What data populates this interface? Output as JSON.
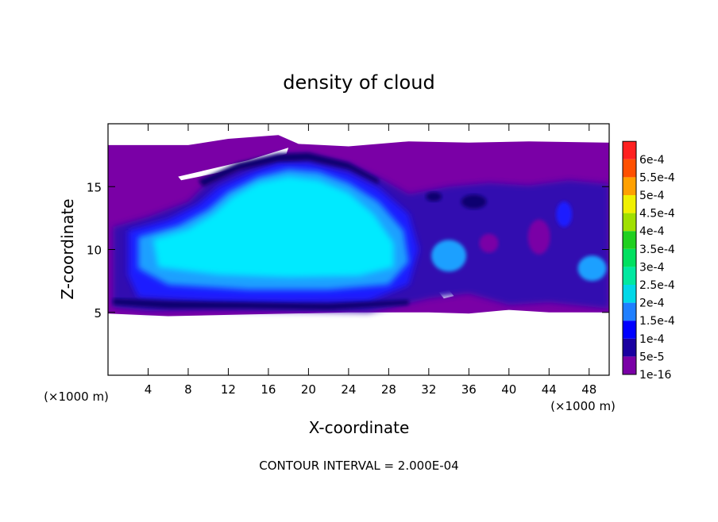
{
  "chart_data": {
    "type": "heatmap",
    "title": "density of cloud",
    "xlabel": "X-coordinate",
    "ylabel": "Z-coordinate",
    "x_unit_label": "(×1000 m)",
    "y_unit_label": "(×1000 m)",
    "xlim": [
      0,
      50
    ],
    "ylim": [
      0,
      20
    ],
    "x_ticks": [
      4,
      8,
      12,
      16,
      20,
      24,
      28,
      32,
      36,
      40,
      44,
      48
    ],
    "y_ticks": [
      5,
      10,
      15
    ],
    "footer": "CONTOUR INTERVAL = 2.000E-04",
    "colorbar": {
      "levels": [
        "1e-16",
        "5e-5",
        "1e-4",
        "1.5e-4",
        "2e-4",
        "2.5e-4",
        "3e-4",
        "3.5e-4",
        "4e-4",
        "4.5e-4",
        "5e-4",
        "5.5e-4",
        "6e-4"
      ],
      "colors": [
        "#7a00a6",
        "#1a00a0",
        "#0000ff",
        "#1f7fff",
        "#00d8e8",
        "#00e8a0",
        "#00e060",
        "#20d020",
        "#a0e000",
        "#f0f000",
        "#ffa000",
        "#ff5000",
        "#ff2020",
        "#ff8080"
      ]
    },
    "field_colors": {
      "background": "#ffffff",
      "outer": "#7a00a6",
      "edge": "#3010b0",
      "mid": "#1a1aff",
      "inner": "#1fa0ff",
      "core": "#00eaff",
      "dark": "#0a0070"
    }
  }
}
